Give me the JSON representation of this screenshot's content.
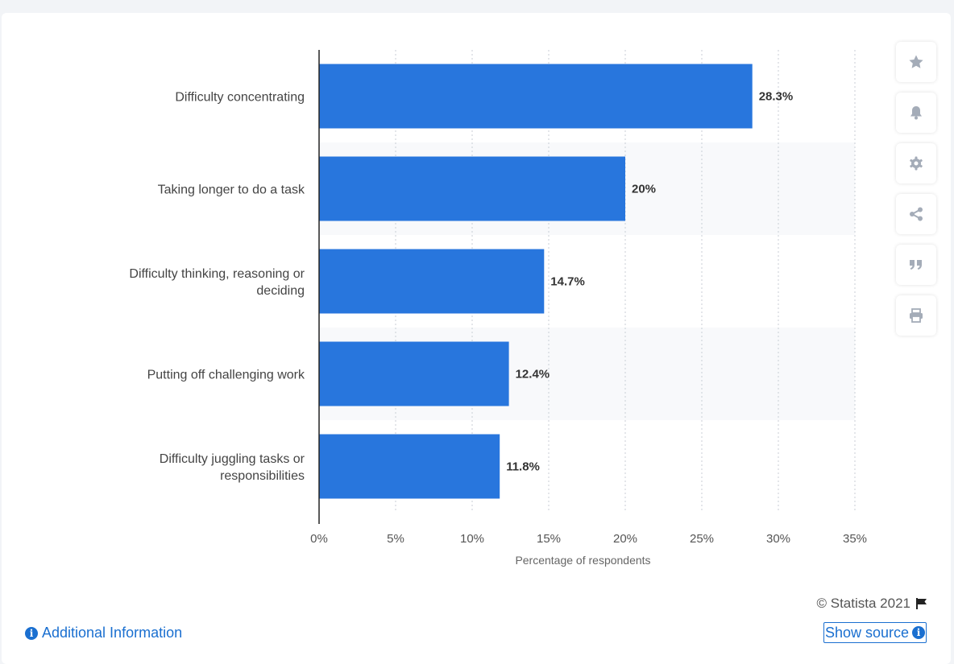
{
  "chart_data": {
    "type": "bar",
    "orientation": "horizontal",
    "categories": [
      "Difficulty concentrating",
      "Taking longer to do a task",
      "Difficulty thinking, reasoning or deciding",
      "Putting off challenging work",
      "Difficulty juggling tasks or responsibilities"
    ],
    "values": [
      28.3,
      20,
      14.7,
      12.4,
      11.8
    ],
    "value_labels": [
      "28.3%",
      "20%",
      "14.7%",
      "12.4%",
      "11.8%"
    ],
    "xlabel": "Percentage of respondents",
    "xlim": [
      0,
      35
    ],
    "xticks": [
      0,
      5,
      10,
      15,
      20,
      25,
      30,
      35
    ],
    "xtick_labels": [
      "0%",
      "5%",
      "10%",
      "15%",
      "20%",
      "25%",
      "30%",
      "35%"
    ],
    "grid": true,
    "bar_color": "#2876dd"
  },
  "footer": {
    "credit": "© Statista 2021",
    "additional_info": "Additional Information",
    "show_source": "Show source"
  },
  "toolbar": {
    "icons": [
      "star-icon",
      "bell-icon",
      "gear-icon",
      "share-icon",
      "quote-icon",
      "print-icon"
    ]
  }
}
